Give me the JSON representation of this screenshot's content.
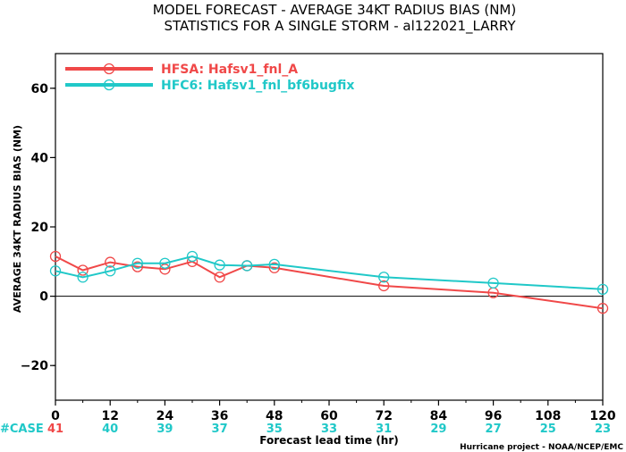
{
  "chart_data": {
    "type": "line",
    "title": [
      "MODEL FORECAST - AVERAGE 34KT RADIUS BIAS (NM)",
      "STATISTICS FOR A SINGLE STORM - al122021_LARRY"
    ],
    "xlabel": "Forecast lead time (hr)",
    "ylabel": "AVERAGE 34KT RADIUS BIAS (NM)",
    "xlim": [
      0,
      120
    ],
    "ylim": [
      -30,
      70
    ],
    "xticks": [
      0,
      12,
      24,
      36,
      48,
      60,
      72,
      84,
      96,
      108,
      120
    ],
    "yticks": [
      -20,
      0,
      20,
      40,
      60
    ],
    "zero_line": true,
    "legend_position": "top-left",
    "series": [
      {
        "name": "HFSA: Hafsv1_fnl_A",
        "color": "#f04848",
        "x": [
          0,
          6,
          12,
          18,
          24,
          30,
          36,
          42,
          48,
          72,
          96,
          120
        ],
        "y": [
          11.5,
          7.5,
          9.8,
          8.5,
          7.8,
          10.0,
          5.5,
          8.8,
          8.2,
          3.0,
          1.0,
          -3.5
        ]
      },
      {
        "name": "HFC6: Hafsv1_fnl_bf6bugfix",
        "color": "#20c8c8",
        "x": [
          0,
          6,
          12,
          18,
          24,
          30,
          36,
          42,
          48,
          72,
          96,
          120
        ],
        "y": [
          7.3,
          5.5,
          7.3,
          9.5,
          9.5,
          11.5,
          9.0,
          8.8,
          9.2,
          5.5,
          3.8,
          2.0
        ]
      }
    ],
    "case_label": "#CASE",
    "case_counts": {
      "x": [
        0,
        12,
        24,
        36,
        48,
        60,
        72,
        84,
        96,
        108,
        120
      ],
      "values": [
        "41",
        "40",
        "39",
        "37",
        "35",
        "33",
        "31",
        "29",
        "27",
        "25",
        "23"
      ]
    },
    "credit": "Hurricane project - NOAA/NCEP/EMC",
    "colors": {
      "case_first": "#f04848",
      "case_rest": "#20c8c8",
      "zero_line": "#000000",
      "axis": "#000000"
    }
  }
}
